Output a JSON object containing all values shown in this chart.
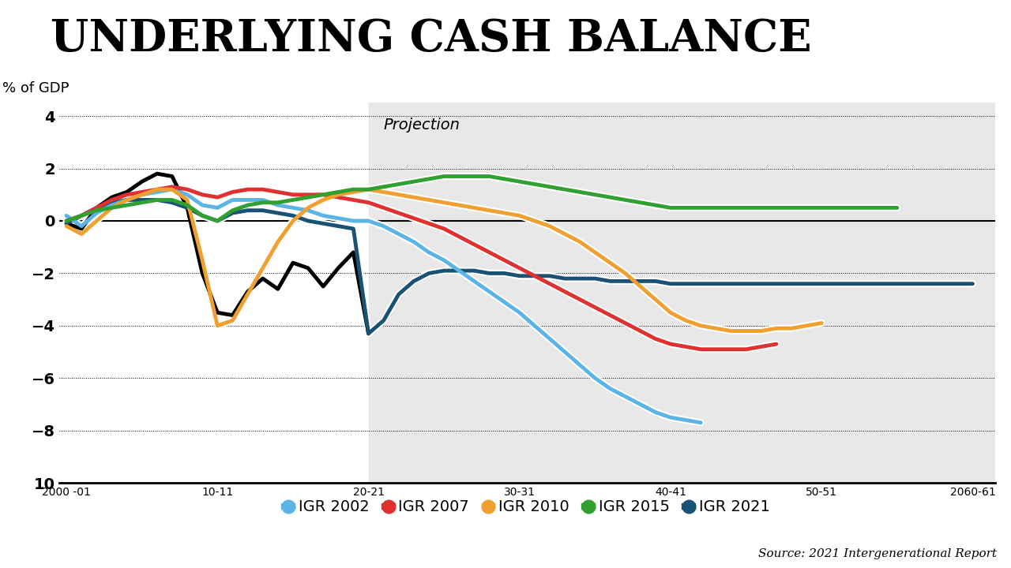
{
  "title": "UNDERLYING CASH BALANCE",
  "ylabel": "% of GDP",
  "source": "Source: 2021 Intergenerational Report",
  "projection_label": "Projection",
  "projection_start": 2020,
  "x_ticks": [
    2000,
    2010,
    2020,
    2030,
    2040,
    2050,
    2060
  ],
  "x_tick_labels": [
    "2000 -01",
    "10-11",
    "20-21",
    "30-31",
    "40-41",
    "50-51",
    "2060-61"
  ],
  "ylim": [
    -10,
    4.5
  ],
  "y_ticks": [
    4,
    2,
    0,
    -2,
    -4,
    -6,
    -8,
    -10
  ],
  "background_color": "#ffffff",
  "projection_bg": "#e8e8e8",
  "series": {
    "actual": {
      "color": "#000000",
      "linewidth": 3.5,
      "label": null,
      "x": [
        2000,
        2001,
        2002,
        2003,
        2004,
        2005,
        2006,
        2007,
        2008,
        2009,
        2010,
        2011,
        2012,
        2013,
        2014,
        2015,
        2016,
        2017,
        2018,
        2019,
        2020
      ],
      "y": [
        -0.1,
        -0.3,
        0.5,
        0.9,
        1.1,
        1.5,
        1.8,
        1.7,
        0.5,
        -2.0,
        -3.5,
        -3.6,
        -2.7,
        -2.2,
        -2.6,
        -1.6,
        -1.8,
        -2.5,
        -1.8,
        -1.2,
        -4.3
      ]
    },
    "igr2002": {
      "color": "#5ab4e5",
      "linewidth": 3.5,
      "label": "IGR 2002",
      "x": [
        2000,
        2001,
        2002,
        2003,
        2004,
        2005,
        2006,
        2007,
        2008,
        2009,
        2010,
        2011,
        2012,
        2013,
        2014,
        2015,
        2016,
        2017,
        2018,
        2019,
        2020,
        2021,
        2022,
        2023,
        2024,
        2025,
        2026,
        2027,
        2028,
        2029,
        2030,
        2031,
        2032,
        2033,
        2034,
        2035,
        2036,
        2037,
        2038,
        2039,
        2040,
        2041,
        2042
      ],
      "y": [
        0.2,
        -0.2,
        0.3,
        0.6,
        0.8,
        1.0,
        1.1,
        1.2,
        1.0,
        0.6,
        0.5,
        0.8,
        0.8,
        0.8,
        0.6,
        0.5,
        0.4,
        0.2,
        0.1,
        0.0,
        0.0,
        -0.2,
        -0.5,
        -0.8,
        -1.2,
        -1.5,
        -1.9,
        -2.3,
        -2.7,
        -3.1,
        -3.5,
        -4.0,
        -4.5,
        -5.0,
        -5.5,
        -6.0,
        -6.4,
        -6.7,
        -7.0,
        -7.3,
        -7.5,
        -7.6,
        -7.7
      ]
    },
    "igr2007": {
      "color": "#e03030",
      "linewidth": 3.5,
      "label": "IGR 2007",
      "x": [
        2000,
        2001,
        2002,
        2003,
        2004,
        2005,
        2006,
        2007,
        2008,
        2009,
        2010,
        2011,
        2012,
        2013,
        2014,
        2015,
        2016,
        2017,
        2018,
        2019,
        2020,
        2021,
        2022,
        2023,
        2024,
        2025,
        2026,
        2027,
        2028,
        2029,
        2030,
        2031,
        2032,
        2033,
        2034,
        2035,
        2036,
        2037,
        2038,
        2039,
        2040,
        2041,
        2042,
        2043,
        2044,
        2045,
        2046,
        2047
      ],
      "y": [
        0.0,
        0.2,
        0.5,
        0.8,
        1.0,
        1.1,
        1.2,
        1.3,
        1.2,
        1.0,
        0.9,
        1.1,
        1.2,
        1.2,
        1.1,
        1.0,
        1.0,
        1.0,
        0.9,
        0.8,
        0.7,
        0.5,
        0.3,
        0.1,
        -0.1,
        -0.3,
        -0.6,
        -0.9,
        -1.2,
        -1.5,
        -1.8,
        -2.1,
        -2.4,
        -2.7,
        -3.0,
        -3.3,
        -3.6,
        -3.9,
        -4.2,
        -4.5,
        -4.7,
        -4.8,
        -4.9,
        -4.9,
        -4.9,
        -4.9,
        -4.8,
        -4.7
      ]
    },
    "igr2010": {
      "color": "#f0a030",
      "linewidth": 3.5,
      "label": "IGR 2010",
      "x": [
        2000,
        2001,
        2002,
        2003,
        2004,
        2005,
        2006,
        2007,
        2008,
        2009,
        2010,
        2011,
        2012,
        2013,
        2014,
        2015,
        2016,
        2017,
        2018,
        2019,
        2020,
        2021,
        2022,
        2023,
        2024,
        2025,
        2026,
        2027,
        2028,
        2029,
        2030,
        2031,
        2032,
        2033,
        2034,
        2035,
        2036,
        2037,
        2038,
        2039,
        2040,
        2041,
        2042,
        2043,
        2044,
        2045,
        2046,
        2047,
        2048,
        2049,
        2050
      ],
      "y": [
        -0.2,
        -0.5,
        0.0,
        0.5,
        0.8,
        1.0,
        1.2,
        1.2,
        0.8,
        -1.5,
        -4.0,
        -3.8,
        -2.8,
        -1.8,
        -0.8,
        0.0,
        0.5,
        0.8,
        1.0,
        1.1,
        1.2,
        1.1,
        1.0,
        0.9,
        0.8,
        0.7,
        0.6,
        0.5,
        0.4,
        0.3,
        0.2,
        0.0,
        -0.2,
        -0.5,
        -0.8,
        -1.2,
        -1.6,
        -2.0,
        -2.5,
        -3.0,
        -3.5,
        -3.8,
        -4.0,
        -4.1,
        -4.2,
        -4.2,
        -4.2,
        -4.1,
        -4.1,
        -4.0,
        -3.9
      ]
    },
    "igr2015": {
      "color": "#30a030",
      "linewidth": 3.5,
      "label": "IGR 2015",
      "x": [
        2000,
        2001,
        2002,
        2003,
        2004,
        2005,
        2006,
        2007,
        2008,
        2009,
        2010,
        2011,
        2012,
        2013,
        2014,
        2015,
        2016,
        2017,
        2018,
        2019,
        2020,
        2021,
        2022,
        2023,
        2024,
        2025,
        2026,
        2027,
        2028,
        2029,
        2030,
        2031,
        2032,
        2033,
        2034,
        2035,
        2036,
        2037,
        2038,
        2039,
        2040,
        2041,
        2042,
        2043,
        2044,
        2045,
        2046,
        2047,
        2048,
        2049,
        2050,
        2051,
        2052,
        2053,
        2054,
        2055
      ],
      "y": [
        0.0,
        0.2,
        0.4,
        0.5,
        0.6,
        0.7,
        0.8,
        0.8,
        0.6,
        0.2,
        0.0,
        0.4,
        0.6,
        0.7,
        0.7,
        0.8,
        0.9,
        1.0,
        1.1,
        1.2,
        1.2,
        1.3,
        1.4,
        1.5,
        1.6,
        1.7,
        1.7,
        1.7,
        1.7,
        1.6,
        1.5,
        1.4,
        1.3,
        1.2,
        1.1,
        1.0,
        0.9,
        0.8,
        0.7,
        0.6,
        0.5,
        0.5,
        0.5,
        0.5,
        0.5,
        0.5,
        0.5,
        0.5,
        0.5,
        0.5,
        0.5,
        0.5,
        0.5,
        0.5,
        0.5,
        0.5
      ]
    },
    "igr2021": {
      "color": "#1a5276",
      "linewidth": 3.5,
      "label": "IGR 2021",
      "x": [
        2000,
        2001,
        2002,
        2003,
        2004,
        2005,
        2006,
        2007,
        2008,
        2009,
        2010,
        2011,
        2012,
        2013,
        2014,
        2015,
        2016,
        2017,
        2018,
        2019,
        2020,
        2021,
        2022,
        2023,
        2024,
        2025,
        2026,
        2027,
        2028,
        2029,
        2030,
        2031,
        2032,
        2033,
        2034,
        2035,
        2036,
        2037,
        2038,
        2039,
        2040,
        2041,
        2042,
        2043,
        2044,
        2045,
        2046,
        2047,
        2048,
        2049,
        2050,
        2051,
        2052,
        2053,
        2054,
        2055,
        2056,
        2057,
        2058,
        2059,
        2060
      ],
      "y": [
        -0.1,
        0.2,
        0.5,
        0.7,
        0.8,
        0.8,
        0.8,
        0.7,
        0.5,
        0.2,
        0.0,
        0.3,
        0.4,
        0.4,
        0.3,
        0.2,
        0.0,
        -0.1,
        -0.2,
        -0.3,
        -4.3,
        -3.8,
        -2.8,
        -2.3,
        -2.0,
        -1.9,
        -1.9,
        -1.9,
        -2.0,
        -2.0,
        -2.1,
        -2.1,
        -2.1,
        -2.2,
        -2.2,
        -2.2,
        -2.3,
        -2.3,
        -2.3,
        -2.3,
        -2.4,
        -2.4,
        -2.4,
        -2.4,
        -2.4,
        -2.4,
        -2.4,
        -2.4,
        -2.4,
        -2.4,
        -2.4,
        -2.4,
        -2.4,
        -2.4,
        -2.4,
        -2.4,
        -2.4,
        -2.4,
        -2.4,
        -2.4,
        -2.4
      ]
    }
  }
}
